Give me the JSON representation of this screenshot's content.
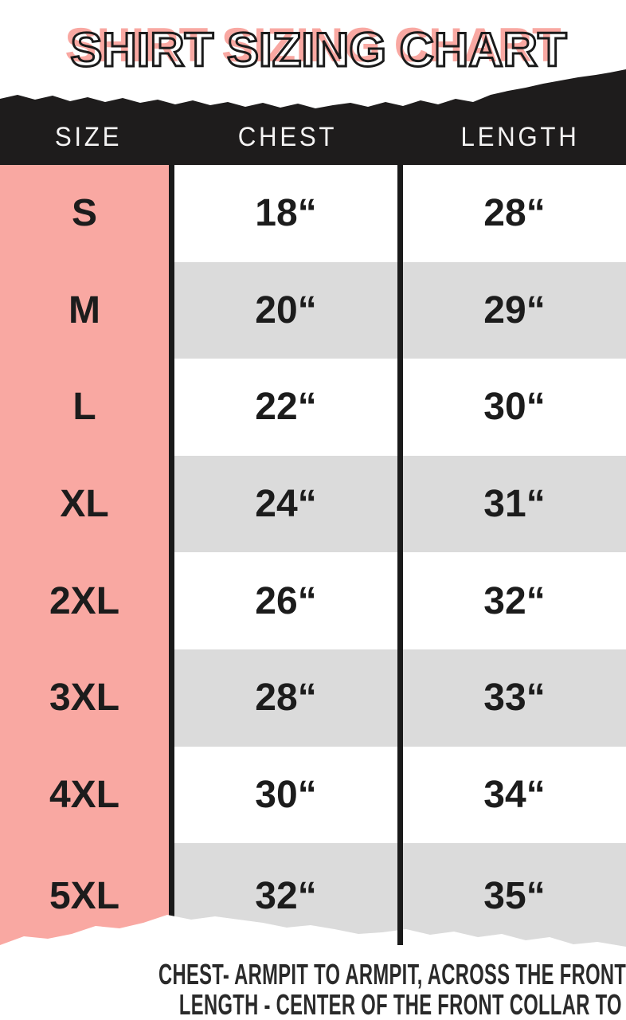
{
  "title": "SHIRT SIZING CHART",
  "header": {
    "size": "SIZE",
    "chest": "CHEST",
    "length": "LENGTH"
  },
  "rows": [
    {
      "size": "S",
      "chest": "18“",
      "length": "28“"
    },
    {
      "size": "M",
      "chest": "20“",
      "length": "29“"
    },
    {
      "size": "L",
      "chest": "22“",
      "length": "30“"
    },
    {
      "size": "XL",
      "chest": "24“",
      "length": "31“"
    },
    {
      "size": "2XL",
      "chest": "26“",
      "length": "32“"
    },
    {
      "size": "3XL",
      "chest": "28“",
      "length": "33“"
    },
    {
      "size": "4XL",
      "chest": "30“",
      "length": "34“"
    },
    {
      "size": "5XL",
      "chest": "32“",
      "length": "35“"
    }
  ],
  "footnotes": {
    "chest": "CHEST- ARMPIT TO ARMPIT, ACROSS THE FRONT OF THE CHEST",
    "length": "LENGTH - CENTER OF THE FRONT COLLAR TO THE CENTER OF THE TAIL"
  },
  "colors": {
    "accent_pink": "#F9A8A2",
    "row_gray": "#DBDBDB",
    "band_black": "#1E1C1C",
    "divider_black": "#1A1A1A",
    "text_black": "#1C1C1C"
  },
  "chart_data": {
    "type": "table",
    "title": "SHIRT SIZING CHART",
    "columns": [
      "SIZE",
      "CHEST",
      "LENGTH"
    ],
    "sizes": [
      "S",
      "M",
      "L",
      "XL",
      "2XL",
      "3XL",
      "4XL",
      "5XL"
    ],
    "chest_inches": [
      18,
      20,
      22,
      24,
      26,
      28,
      30,
      32
    ],
    "length_inches": [
      28,
      29,
      30,
      31,
      32,
      33,
      34,
      35
    ],
    "notes": [
      "CHEST- ARMPIT TO ARMPIT, ACROSS THE FRONT OF THE CHEST",
      "LENGTH - CENTER OF THE FRONT COLLAR TO THE CENTER OF THE TAIL"
    ]
  }
}
